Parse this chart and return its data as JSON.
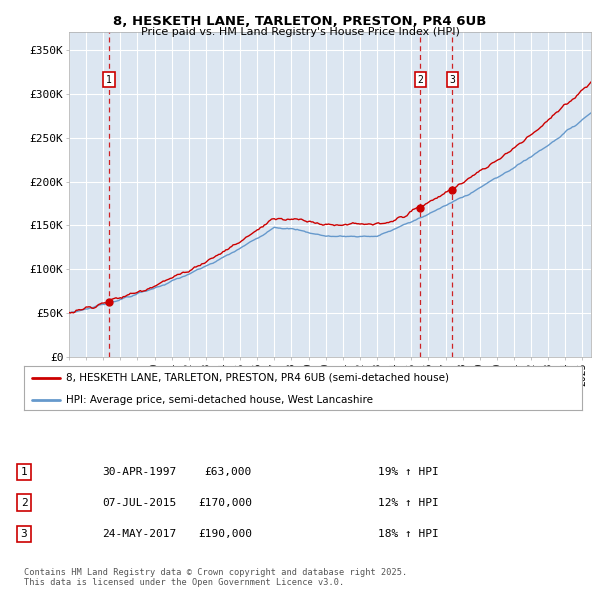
{
  "title_line1": "8, HESKETH LANE, TARLETON, PRESTON, PR4 6UB",
  "title_line2": "Price paid vs. HM Land Registry's House Price Index (HPI)",
  "ylim": [
    0,
    370000
  ],
  "xlim_start": 1995.0,
  "xlim_end": 2025.5,
  "yticks": [
    0,
    50000,
    100000,
    150000,
    200000,
    250000,
    300000,
    350000
  ],
  "ytick_labels": [
    "£0",
    "£50K",
    "£100K",
    "£150K",
    "£200K",
    "£250K",
    "£300K",
    "£350K"
  ],
  "background_color": "#dce6f1",
  "grid_color": "#ffffff",
  "sale_dates": [
    1997.33,
    2015.52,
    2017.39
  ],
  "sale_prices": [
    63000,
    170000,
    190000
  ],
  "sale_labels": [
    "1",
    "2",
    "3"
  ],
  "legend_line1": "8, HESKETH LANE, TARLETON, PRESTON, PR4 6UB (semi-detached house)",
  "legend_line2": "HPI: Average price, semi-detached house, West Lancashire",
  "table_data": [
    [
      "1",
      "30-APR-1997",
      "£63,000",
      "19% ↑ HPI"
    ],
    [
      "2",
      "07-JUL-2015",
      "£170,000",
      "12% ↑ HPI"
    ],
    [
      "3",
      "24-MAY-2017",
      "£190,000",
      "18% ↑ HPI"
    ]
  ],
  "footer": "Contains HM Land Registry data © Crown copyright and database right 2025.\nThis data is licensed under the Open Government Licence v3.0.",
  "red_color": "#cc0000",
  "blue_color": "#6699cc"
}
